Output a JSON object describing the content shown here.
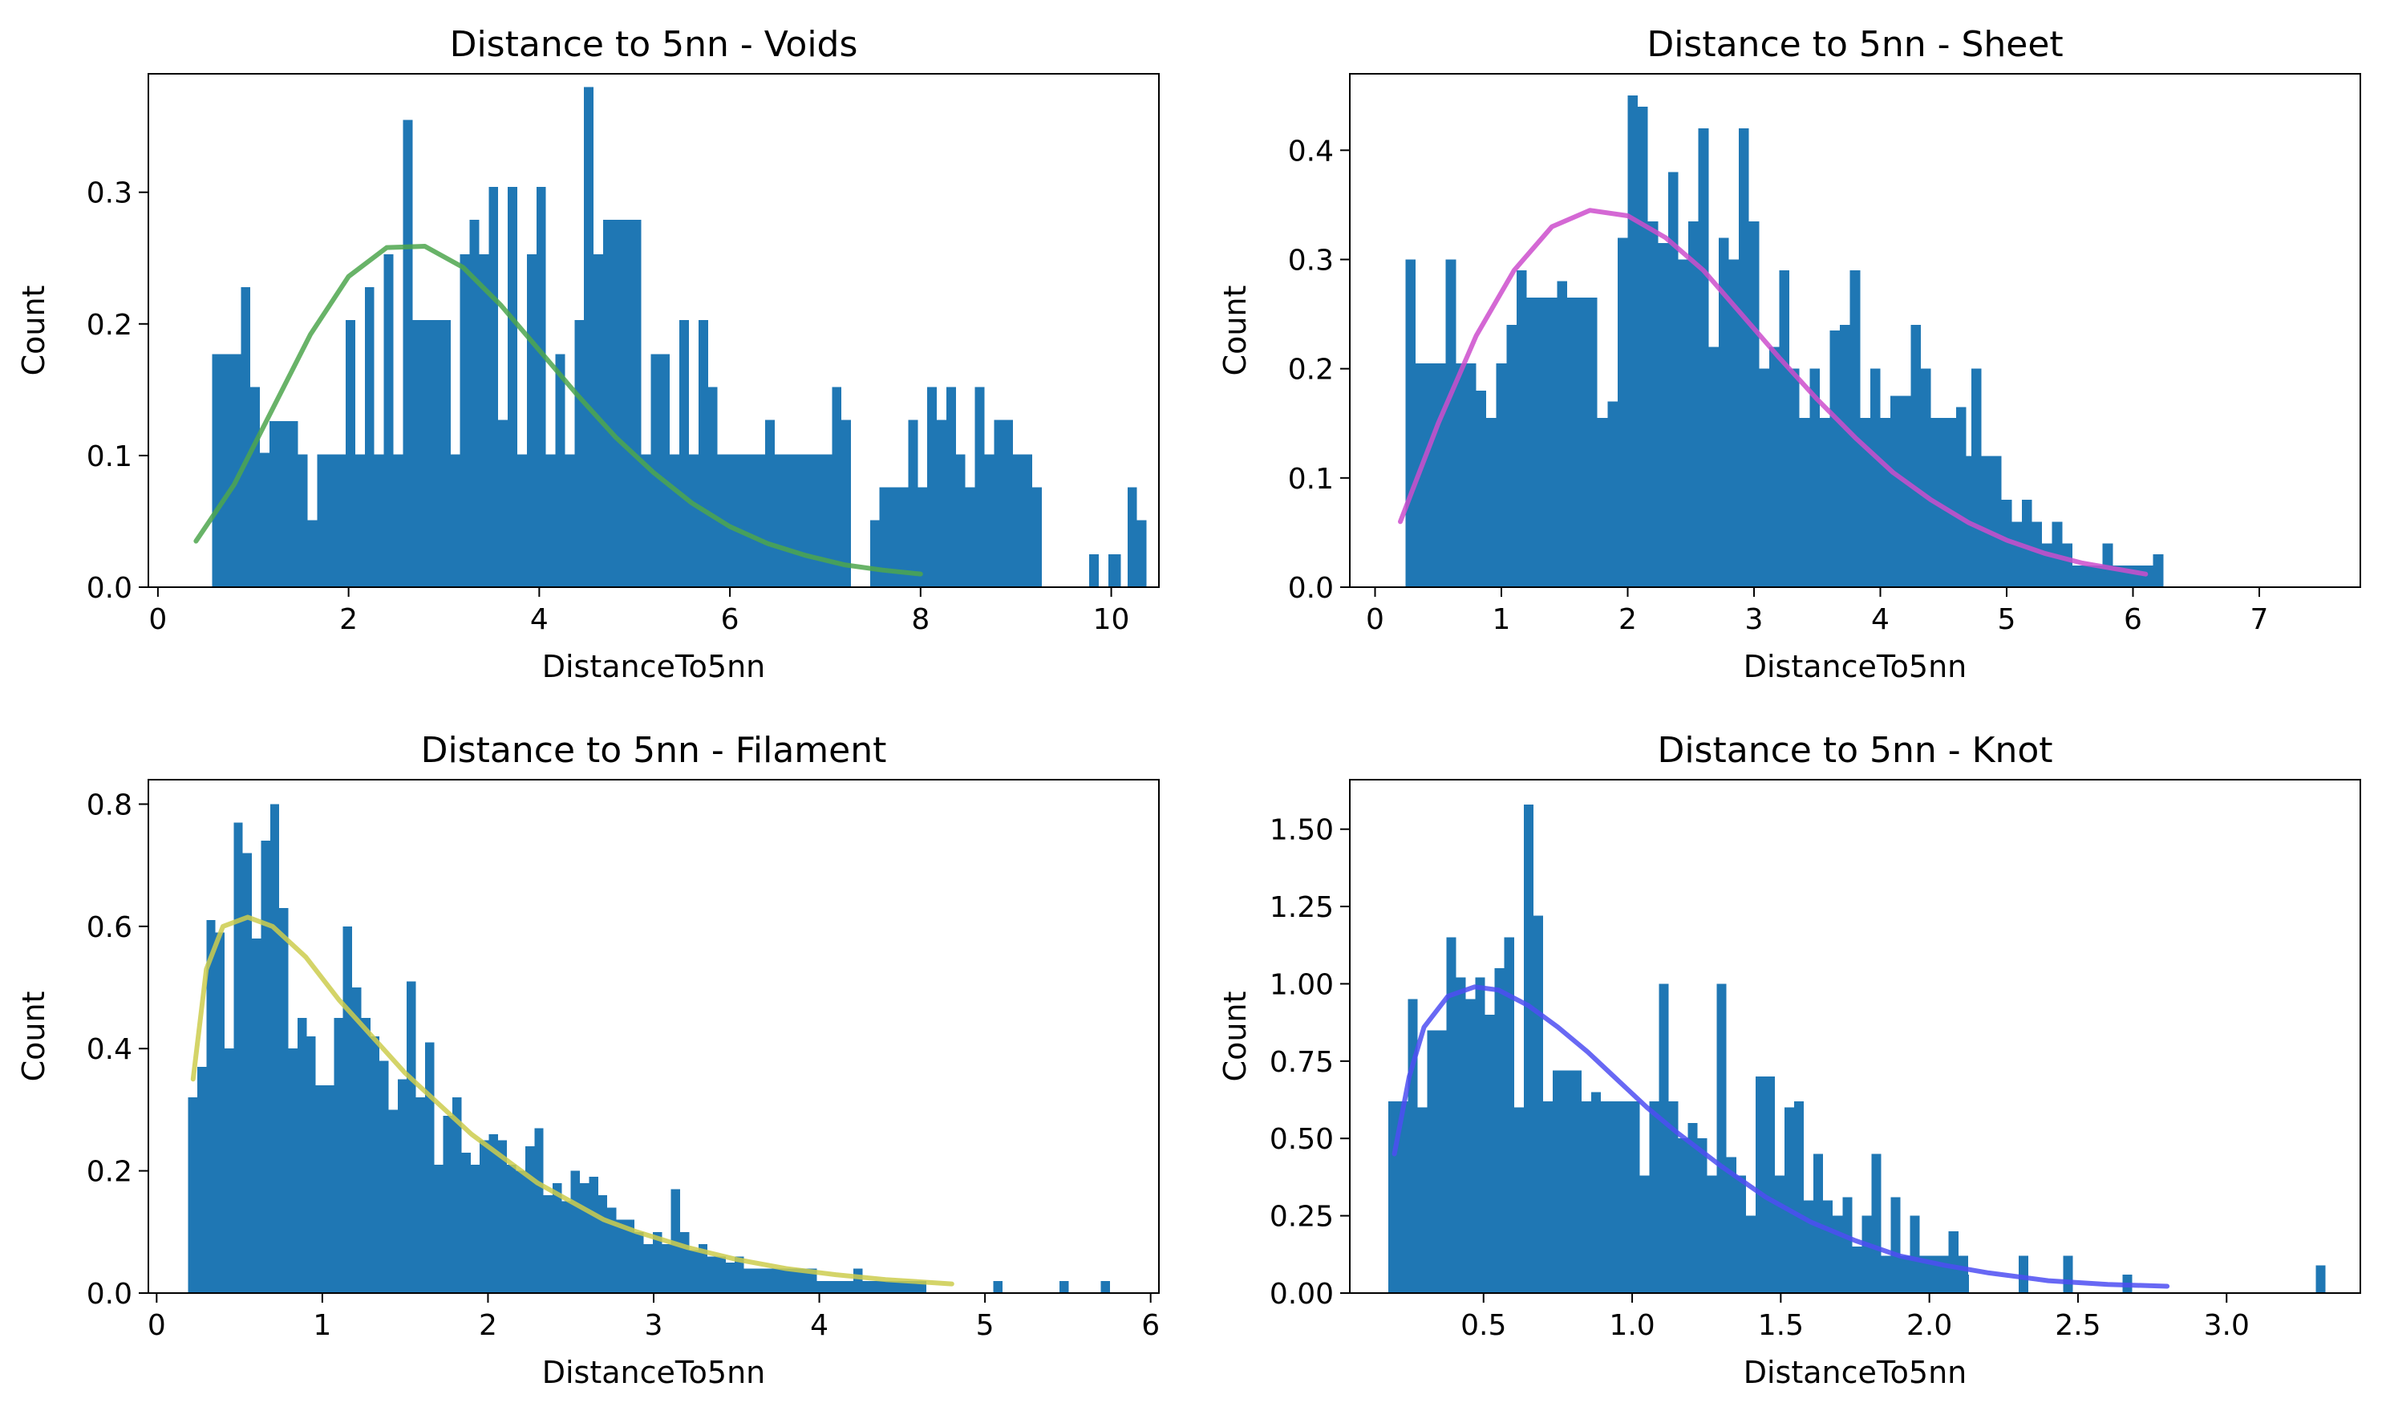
{
  "chart_data": [
    {
      "type": "bar",
      "title": "Distance to 5nn - Voids",
      "xlabel": "DistanceTo5nn",
      "ylabel": "Count",
      "xlim": [
        -0.1,
        10.5
      ],
      "ylim": [
        0,
        0.39
      ],
      "xticks": [
        "0",
        "2",
        "4",
        "6",
        "8",
        "10"
      ],
      "yticks": [
        "0.0",
        "0.1",
        "0.2",
        "0.3"
      ],
      "grid": false,
      "bin_start": 0.57,
      "bin_width": 0.1,
      "bar_color": "#1f77b4",
      "values": [
        0.177,
        0.177,
        0.177,
        0.228,
        0.152,
        0.102,
        0.126,
        0.126,
        0.126,
        0.101,
        0.051,
        0.101,
        0.101,
        0.101,
        0.203,
        0.101,
        0.228,
        0.101,
        0.253,
        0.101,
        0.355,
        0.203,
        0.203,
        0.203,
        0.203,
        0.101,
        0.253,
        0.279,
        0.253,
        0.304,
        0.127,
        0.304,
        0.101,
        0.253,
        0.304,
        0.101,
        0.177,
        0.101,
        0.203,
        0.38,
        0.253,
        0.279,
        0.279,
        0.279,
        0.279,
        0.101,
        0.177,
        0.177,
        0.101,
        0.203,
        0.101,
        0.203,
        0.152,
        0.101,
        0.101,
        0.101,
        0.101,
        0.101,
        0.127,
        0.101,
        0.101,
        0.101,
        0.101,
        0.101,
        0.101,
        0.152,
        0.127,
        0,
        0,
        0.051,
        0.076,
        0.076,
        0.076,
        0.127,
        0.076,
        0.152,
        0.127,
        0.152,
        0.101,
        0.076,
        0.152,
        0.101,
        0.127,
        0.127,
        0.101,
        0.101,
        0.076,
        0,
        0,
        0,
        0,
        0,
        0.025,
        0,
        0.025,
        0,
        0.076,
        0.051
      ],
      "extra_bars": [
        {
          "x": 8.8,
          "value": 0.025
        },
        {
          "x": 10.0,
          "value": 0.025
        }
      ],
      "fit_curve": {
        "color": "#4da64d",
        "x": [
          0.4,
          0.8,
          1.2,
          1.6,
          2.0,
          2.4,
          2.8,
          3.2,
          3.6,
          4.0,
          4.4,
          4.8,
          5.2,
          5.6,
          6.0,
          6.4,
          6.8,
          7.2,
          7.6,
          8.0
        ],
        "y": [
          0.035,
          0.078,
          0.135,
          0.192,
          0.236,
          0.258,
          0.259,
          0.243,
          0.214,
          0.18,
          0.146,
          0.114,
          0.087,
          0.064,
          0.046,
          0.033,
          0.024,
          0.017,
          0.013,
          0.01
        ]
      }
    },
    {
      "type": "bar",
      "title": "Distance to 5nn - Sheet",
      "xlabel": "DistanceTo5nn",
      "ylabel": "Count",
      "xlim": [
        -0.2,
        7.8
      ],
      "ylim": [
        0,
        0.47
      ],
      "xticks": [
        "0",
        "1",
        "2",
        "3",
        "4",
        "5",
        "6",
        "7"
      ],
      "yticks": [
        "0.0",
        "0.1",
        "0.2",
        "0.3",
        "0.4"
      ],
      "grid": false,
      "bin_start": 0.24,
      "bin_width": 0.08,
      "bar_color": "#1f77b4",
      "values": [
        0.3,
        0.205,
        0.205,
        0.205,
        0.3,
        0.205,
        0.205,
        0.18,
        0.155,
        0.205,
        0.24,
        0.29,
        0.265,
        0.265,
        0.265,
        0.28,
        0.265,
        0.265,
        0.265,
        0.155,
        0.17,
        0.32,
        0.45,
        0.44,
        0.335,
        0.315,
        0.38,
        0.3,
        0.335,
        0.42,
        0.22,
        0.32,
        0.3,
        0.42,
        0.335,
        0.2,
        0.22,
        0.29,
        0.2,
        0.155,
        0.2,
        0.155,
        0.235,
        0.24,
        0.29,
        0.155,
        0.2,
        0.155,
        0.175,
        0.175,
        0.24,
        0.2,
        0.155,
        0.155,
        0.155,
        0.12,
        0.2,
        0.12,
        0.12,
        0.08,
        0.06,
        0.08,
        0.06,
        0.04,
        0.06,
        0.04,
        0.02,
        0.02,
        0.02,
        0.04,
        0.02,
        0.02,
        0.02,
        0.02,
        0.03
      ],
      "extra_bars": [
        {
          "x": 4.6,
          "value": 0.165
        }
      ],
      "fit_curve": {
        "color": "#cc4dcc",
        "x": [
          0.2,
          0.5,
          0.8,
          1.1,
          1.4,
          1.7,
          2.0,
          2.3,
          2.6,
          2.9,
          3.2,
          3.5,
          3.8,
          4.1,
          4.4,
          4.7,
          5.0,
          5.3,
          5.6,
          5.9,
          6.1
        ],
        "y": [
          0.06,
          0.15,
          0.23,
          0.29,
          0.33,
          0.345,
          0.34,
          0.32,
          0.29,
          0.25,
          0.21,
          0.172,
          0.137,
          0.105,
          0.08,
          0.059,
          0.043,
          0.031,
          0.022,
          0.016,
          0.012
        ]
      }
    },
    {
      "type": "bar",
      "title": "Distance to 5nn - Filament",
      "xlabel": "DistanceTo5nn",
      "ylabel": "Count",
      "xlim": [
        -0.05,
        6.05
      ],
      "ylim": [
        0,
        0.84
      ],
      "xticks": [
        "0",
        "1",
        "2",
        "3",
        "4",
        "5",
        "6"
      ],
      "yticks": [
        "0.0",
        "0.2",
        "0.4",
        "0.6",
        "0.8"
      ],
      "grid": false,
      "bin_start": 0.19,
      "bin_width": 0.055,
      "bar_color": "#1f77b4",
      "values": [
        0.32,
        0.37,
        0.61,
        0.59,
        0.4,
        0.77,
        0.72,
        0.58,
        0.74,
        0.8,
        0.63,
        0.4,
        0.45,
        0.42,
        0.34,
        0.34,
        0.45,
        0.6,
        0.5,
        0.45,
        0.42,
        0.38,
        0.3,
        0.35,
        0.51,
        0.32,
        0.41,
        0.21,
        0.29,
        0.32,
        0.23,
        0.21,
        0.25,
        0.26,
        0.25,
        0.21,
        0.2,
        0.24,
        0.27,
        0.16,
        0.18,
        0.15,
        0.2,
        0.18,
        0.19,
        0.16,
        0.14,
        0.12,
        0.12,
        0.1,
        0.08,
        0.1,
        0.08,
        0.17,
        0.1,
        0.07,
        0.08,
        0.06,
        0.06,
        0.05,
        0.06,
        0.04,
        0.04,
        0.04,
        0.04,
        0.04,
        0.04,
        0.04,
        0.04,
        0.02,
        0.02,
        0.02,
        0.02,
        0.04,
        0.02,
        0.02,
        0.02,
        0.02,
        0.02,
        0.02,
        0.02
      ],
      "extra_bars": [
        {
          "x": 4.2,
          "value": 0.02
        },
        {
          "x": 5.05,
          "value": 0.02
        },
        {
          "x": 5.45,
          "value": 0.02
        },
        {
          "x": 5.7,
          "value": 0.02
        }
      ],
      "fit_curve": {
        "color": "#cccc4d",
        "x": [
          0.22,
          0.3,
          0.4,
          0.55,
          0.7,
          0.9,
          1.1,
          1.3,
          1.5,
          1.7,
          1.9,
          2.1,
          2.3,
          2.5,
          2.7,
          2.9,
          3.2,
          3.5,
          3.8,
          4.1,
          4.4,
          4.8
        ],
        "y": [
          0.35,
          0.53,
          0.6,
          0.615,
          0.6,
          0.55,
          0.48,
          0.42,
          0.36,
          0.31,
          0.26,
          0.22,
          0.18,
          0.15,
          0.12,
          0.1,
          0.075,
          0.055,
          0.04,
          0.03,
          0.022,
          0.015
        ]
      }
    },
    {
      "type": "bar",
      "title": "Distance to 5nn - Knot",
      "xlabel": "DistanceTo5nn",
      "ylabel": "Count",
      "xlim": [
        0.05,
        3.45
      ],
      "ylim": [
        0,
        1.66
      ],
      "xticks": [
        "0.5",
        "1.0",
        "1.5",
        "2.0",
        "2.5",
        "3.0"
      ],
      "yticks": [
        "0.00",
        "0.25",
        "0.50",
        "0.75",
        "1.00",
        "1.25",
        "1.50"
      ],
      "grid": false,
      "bin_start": 0.18,
      "bin_width": 0.0325,
      "bar_color": "#1f77b4",
      "values": [
        0.62,
        0.62,
        0.95,
        0.6,
        0.85,
        0.85,
        1.15,
        1.02,
        0.95,
        1.02,
        0.9,
        1.05,
        1.15,
        0.6,
        1.58,
        1.22,
        0.62,
        0.72,
        0.72,
        0.72,
        0.62,
        0.65,
        0.62,
        0.62,
        0.62,
        0.62,
        0.38,
        0.62,
        1.0,
        0.62,
        0.5,
        0.55,
        0.5,
        0.38,
        1.0,
        0.44,
        0.38,
        0.25,
        0.7,
        0.7,
        0.38,
        0.6,
        0.62,
        0.3,
        0.45,
        0.3,
        0.25,
        0.31,
        0.15,
        0.25,
        0.45,
        0.12,
        0.31,
        0.12,
        0.25,
        0.12,
        0.12,
        0.12,
        0.2,
        0.12
      ],
      "extra_bars": [
        {
          "x": 2.1,
          "value": 0.06
        },
        {
          "x": 2.3,
          "value": 0.12
        },
        {
          "x": 2.45,
          "value": 0.12
        },
        {
          "x": 2.65,
          "value": 0.06
        },
        {
          "x": 3.3,
          "value": 0.09
        }
      ],
      "fit_curve": {
        "color": "#4d4df2",
        "x": [
          0.2,
          0.25,
          0.3,
          0.38,
          0.47,
          0.55,
          0.65,
          0.75,
          0.85,
          0.95,
          1.05,
          1.15,
          1.3,
          1.45,
          1.6,
          1.75,
          1.9,
          2.05,
          2.2,
          2.4,
          2.6,
          2.8
        ],
        "y": [
          0.45,
          0.7,
          0.86,
          0.96,
          0.99,
          0.98,
          0.93,
          0.86,
          0.78,
          0.69,
          0.6,
          0.52,
          0.41,
          0.31,
          0.23,
          0.17,
          0.12,
          0.09,
          0.065,
          0.04,
          0.028,
          0.022
        ]
      }
    }
  ]
}
